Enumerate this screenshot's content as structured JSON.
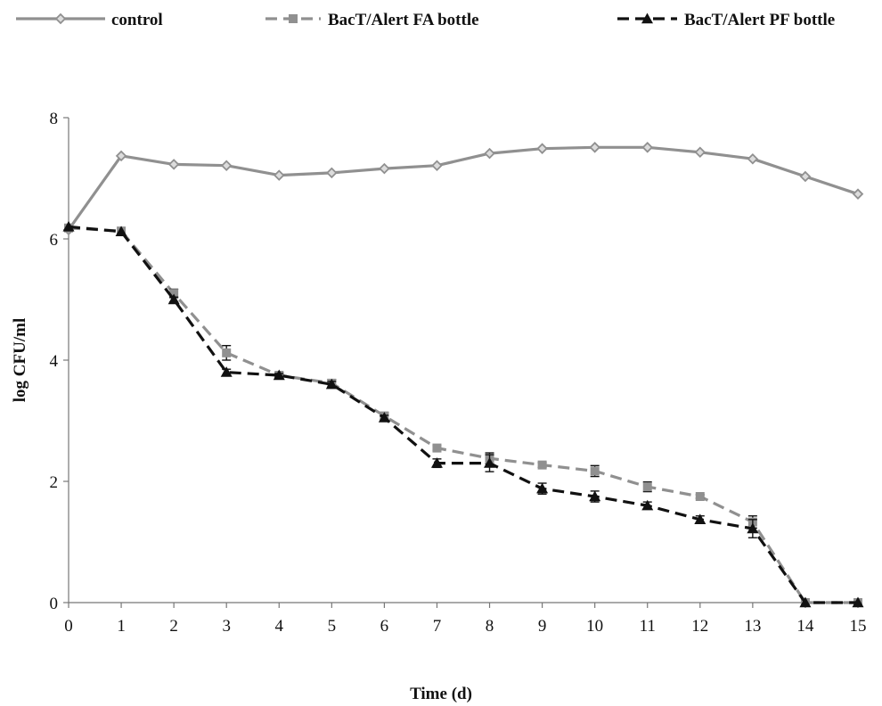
{
  "chart_data": {
    "type": "line",
    "title": "",
    "xlabel": "Time (d)",
    "ylabel": "log CFU/ml",
    "x": [
      0,
      1,
      2,
      3,
      4,
      5,
      6,
      7,
      8,
      9,
      10,
      11,
      12,
      13,
      14,
      15
    ],
    "xlim": [
      0,
      15
    ],
    "ylim": [
      0,
      8
    ],
    "yticks": [
      0,
      2,
      4,
      6,
      8
    ],
    "grid": false,
    "legend_position": "top",
    "series": [
      {
        "name": "control",
        "color": "#909090",
        "marker": "diamond",
        "dash": "solid",
        "values": [
          6.15,
          7.37,
          7.23,
          7.21,
          7.05,
          7.09,
          7.16,
          7.21,
          7.41,
          7.49,
          7.51,
          7.51,
          7.43,
          7.32,
          7.03,
          6.74
        ],
        "errors": [
          0,
          0,
          0,
          0,
          0,
          0,
          0,
          0,
          0,
          0,
          0,
          0,
          0,
          0,
          0,
          0
        ]
      },
      {
        "name": "BacT/Alert FA bottle",
        "color": "#909090",
        "marker": "square",
        "dash": "dashed",
        "values": [
          6.18,
          6.13,
          5.1,
          4.12,
          3.75,
          3.62,
          3.08,
          2.55,
          2.38,
          2.27,
          2.17,
          1.91,
          1.75,
          1.33,
          0.0,
          0.0
        ],
        "errors": [
          0,
          0,
          0.07,
          0.12,
          0.04,
          0.06,
          0.05,
          0.04,
          0.09,
          0.04,
          0.09,
          0.08,
          0.03,
          0.1,
          0,
          0
        ]
      },
      {
        "name": "BacT/Alert PF bottle",
        "color": "#111111",
        "marker": "triangle",
        "dash": "dashed",
        "values": [
          6.2,
          6.12,
          5.0,
          3.8,
          3.75,
          3.6,
          3.05,
          2.3,
          2.3,
          1.88,
          1.75,
          1.6,
          1.37,
          1.22,
          0.0,
          0.0
        ],
        "errors": [
          0,
          0,
          0.04,
          0.05,
          0.03,
          0.05,
          0.04,
          0.07,
          0.14,
          0.09,
          0.09,
          0.06,
          0.06,
          0.15,
          0,
          0
        ]
      }
    ]
  }
}
